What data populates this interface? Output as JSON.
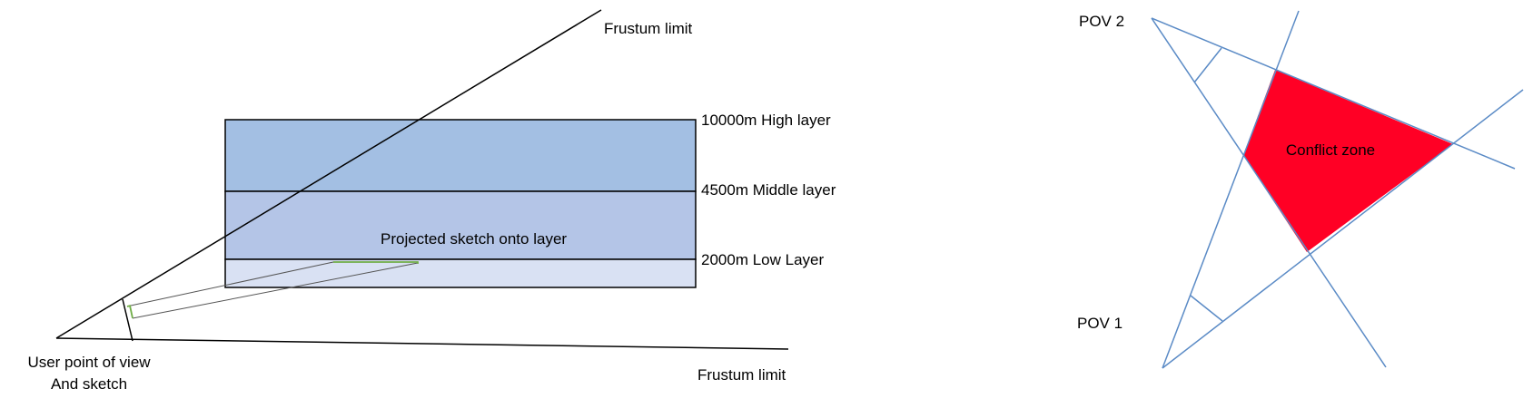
{
  "left_diagram": {
    "frustum_top_label": "Frustum limit",
    "frustum_bottom_label": "Frustum limit",
    "layers": [
      {
        "label": "10000m High layer",
        "color": "#a3bfe3"
      },
      {
        "label": "4500m Middle layer",
        "color": "#b4c5e7"
      },
      {
        "label": "2000m Low Layer",
        "color": "#d9e1f3"
      }
    ],
    "projection_label": "Projected sketch onto layer",
    "user_pov_line1": "User point of view",
    "user_pov_line2": "And sketch",
    "sketch_color": "#70ad47"
  },
  "right_diagram": {
    "pov1_label": "POV 1",
    "pov2_label": "POV 2",
    "conflict_label": "Conflict zone",
    "conflict_color": "#ff0025",
    "line_color": "#5b8bc6"
  }
}
